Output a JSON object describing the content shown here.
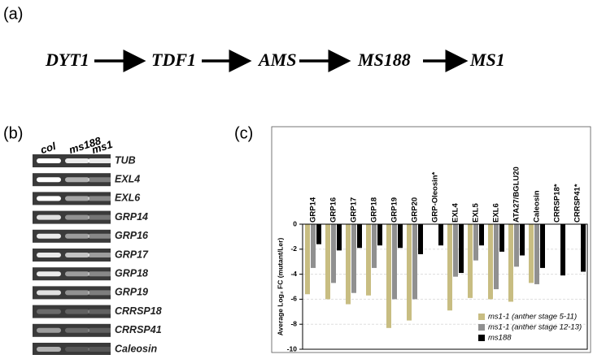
{
  "panel_a": {
    "label": "(a)",
    "nodes": [
      "DYT1",
      "TDF1",
      "AMS",
      "MS188",
      "MS1"
    ]
  },
  "panel_b": {
    "label": "(b)",
    "columns": [
      "col",
      "ms188",
      "ms1"
    ],
    "rows": [
      "TUB",
      "EXL4",
      "EXL6",
      "GRP14",
      "GRP16",
      "GRP17",
      "GRP18",
      "GRP19",
      "CRRSP18",
      "CRRSP41",
      "Caleosin"
    ]
  },
  "chart_data": {
    "type": "bar",
    "panel_label": "(c)",
    "y_label": "Average Log₂ FC (mutant/Ler)",
    "categories": [
      "GRP14",
      "GRP16",
      "GRP17",
      "GRP18",
      "GRP19",
      "GRP20",
      "GRP-Oleosin*",
      "EXL4",
      "EXL5",
      "EXL6",
      "ATA27/BGLU20",
      "Caleosin",
      "CRRSP18*",
      "CRRSP41*"
    ],
    "series": [
      {
        "name": "ms1-1 (anther stage 5-11)",
        "color": "#c8bd82",
        "values": [
          -5.6,
          -6.0,
          -6.4,
          -5.7,
          -8.3,
          -7.7,
          null,
          -6.9,
          -5.9,
          -6.0,
          -6.2,
          -4.7,
          null,
          null
        ]
      },
      {
        "name": "ms1-1 (anther stage 12-13)",
        "color": "#909090",
        "values": [
          -3.5,
          -4.7,
          -5.5,
          -3.5,
          -6.0,
          -6.0,
          null,
          -4.2,
          -2.9,
          -5.2,
          -3.4,
          -4.8,
          null,
          null
        ]
      },
      {
        "name": "ms188",
        "color": "#000000",
        "values": [
          -1.6,
          -2.1,
          -1.9,
          -1.7,
          -1.9,
          -2.4,
          -1.7,
          -3.9,
          -1.7,
          -2.2,
          -2.5,
          -3.5,
          -4.1,
          -3.8
        ]
      }
    ],
    "ylim": [
      -10,
      0
    ],
    "yticks": [
      0,
      -2,
      -4,
      -6,
      -8,
      -10
    ],
    "grid": true,
    "legend": "bottom-right"
  }
}
